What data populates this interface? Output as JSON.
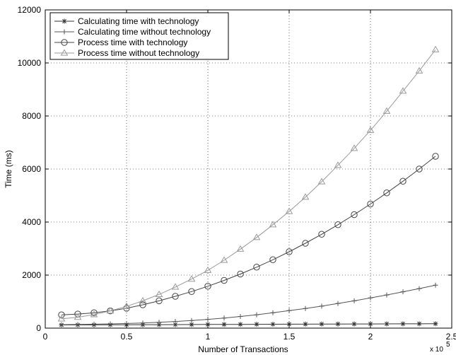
{
  "chart_data": {
    "type": "line",
    "xlabel": "Number of Transactions",
    "ylabel": "Time (ms)",
    "x_multiplier_label": "x 10",
    "x_multiplier_exp": "5",
    "xlim": [
      0,
      2.5
    ],
    "ylim": [
      0,
      12000
    ],
    "x_ticks": [
      "0",
      "0.5",
      "1",
      "1.5",
      "2",
      "2.5"
    ],
    "y_ticks": [
      "0",
      "2000",
      "4000",
      "6000",
      "8000",
      "10000",
      "12000"
    ],
    "grid": true,
    "legend_position": "top-left",
    "x": [
      0.1,
      0.2,
      0.3,
      0.4,
      0.5,
      0.6,
      0.7,
      0.8,
      0.9,
      1.0,
      1.1,
      1.2,
      1.3,
      1.4,
      1.5,
      1.6,
      1.7,
      1.8,
      1.9,
      2.0,
      2.1,
      2.2,
      2.3,
      2.4
    ],
    "series": [
      {
        "name": "Calculating time with technology",
        "marker": "star",
        "color": "#333333",
        "values": [
          120,
          122,
          124,
          126,
          128,
          130,
          132,
          134,
          136,
          138,
          140,
          142,
          144,
          146,
          148,
          150,
          152,
          154,
          156,
          158,
          160,
          162,
          164,
          166
        ]
      },
      {
        "name": "Calculating time without technology",
        "marker": "plus",
        "color": "#555555",
        "values": [
          130,
          138,
          148,
          160,
          175,
          195,
          220,
          250,
          285,
          330,
          380,
          440,
          505,
          580,
          660,
          740,
          830,
          930,
          1030,
          1140,
          1250,
          1370,
          1490,
          1620
        ]
      },
      {
        "name": "Process time with technology",
        "marker": "circle",
        "color": "#444444",
        "values": [
          500,
          530,
          580,
          650,
          750,
          880,
          1030,
          1200,
          1380,
          1580,
          1800,
          2040,
          2300,
          2580,
          2880,
          3200,
          3540,
          3900,
          4280,
          4680,
          5100,
          5540,
          6000,
          6480
        ]
      },
      {
        "name": "Process time without technology",
        "marker": "triangle",
        "color": "#9a9a9a",
        "values": [
          350,
          410,
          510,
          650,
          820,
          1030,
          1270,
          1550,
          1850,
          2180,
          2560,
          2980,
          3420,
          3900,
          4400,
          4940,
          5520,
          6140,
          6780,
          7460,
          8180,
          8940,
          9700,
          10500
        ]
      }
    ]
  }
}
